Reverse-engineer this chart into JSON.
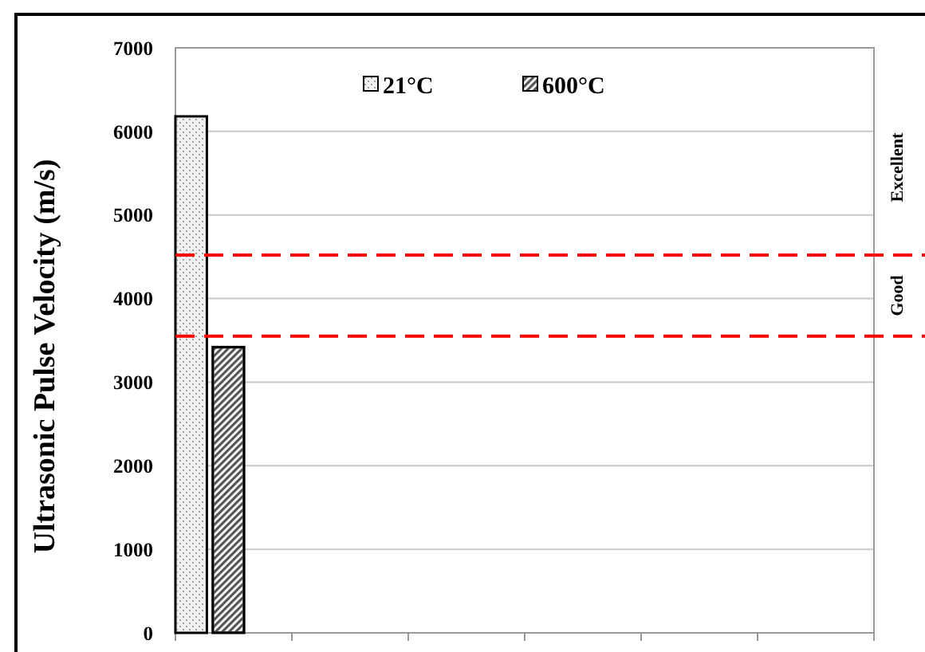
{
  "chart_data": {
    "type": "bar",
    "ylabel": "Ultrasonic Pulse Velocity (m/s)",
    "categories": [
      null,
      null,
      null,
      null,
      null,
      null
    ],
    "series": [
      {
        "name": "21°C",
        "color": "#f0f0f0",
        "values": [
          6180,
          null,
          null,
          null,
          null,
          null
        ]
      },
      {
        "name": "600°C",
        "color": "#555555",
        "values": [
          3420,
          null,
          null,
          null,
          null,
          null
        ]
      }
    ],
    "ylim": [
      0,
      7000
    ],
    "yticks": [
      0,
      1000,
      2000,
      3000,
      4000,
      5000,
      6000,
      7000
    ],
    "grid": "y",
    "legend": "top",
    "ref_lines": [
      {
        "axis": "y",
        "value": 4520,
        "color": "#ff0000",
        "line_style": "dashed"
      },
      {
        "axis": "y",
        "value": 3550,
        "color": "#ff0000",
        "line_style": "dashed"
      }
    ],
    "annotations": [
      "Excellent",
      "Good"
    ]
  }
}
